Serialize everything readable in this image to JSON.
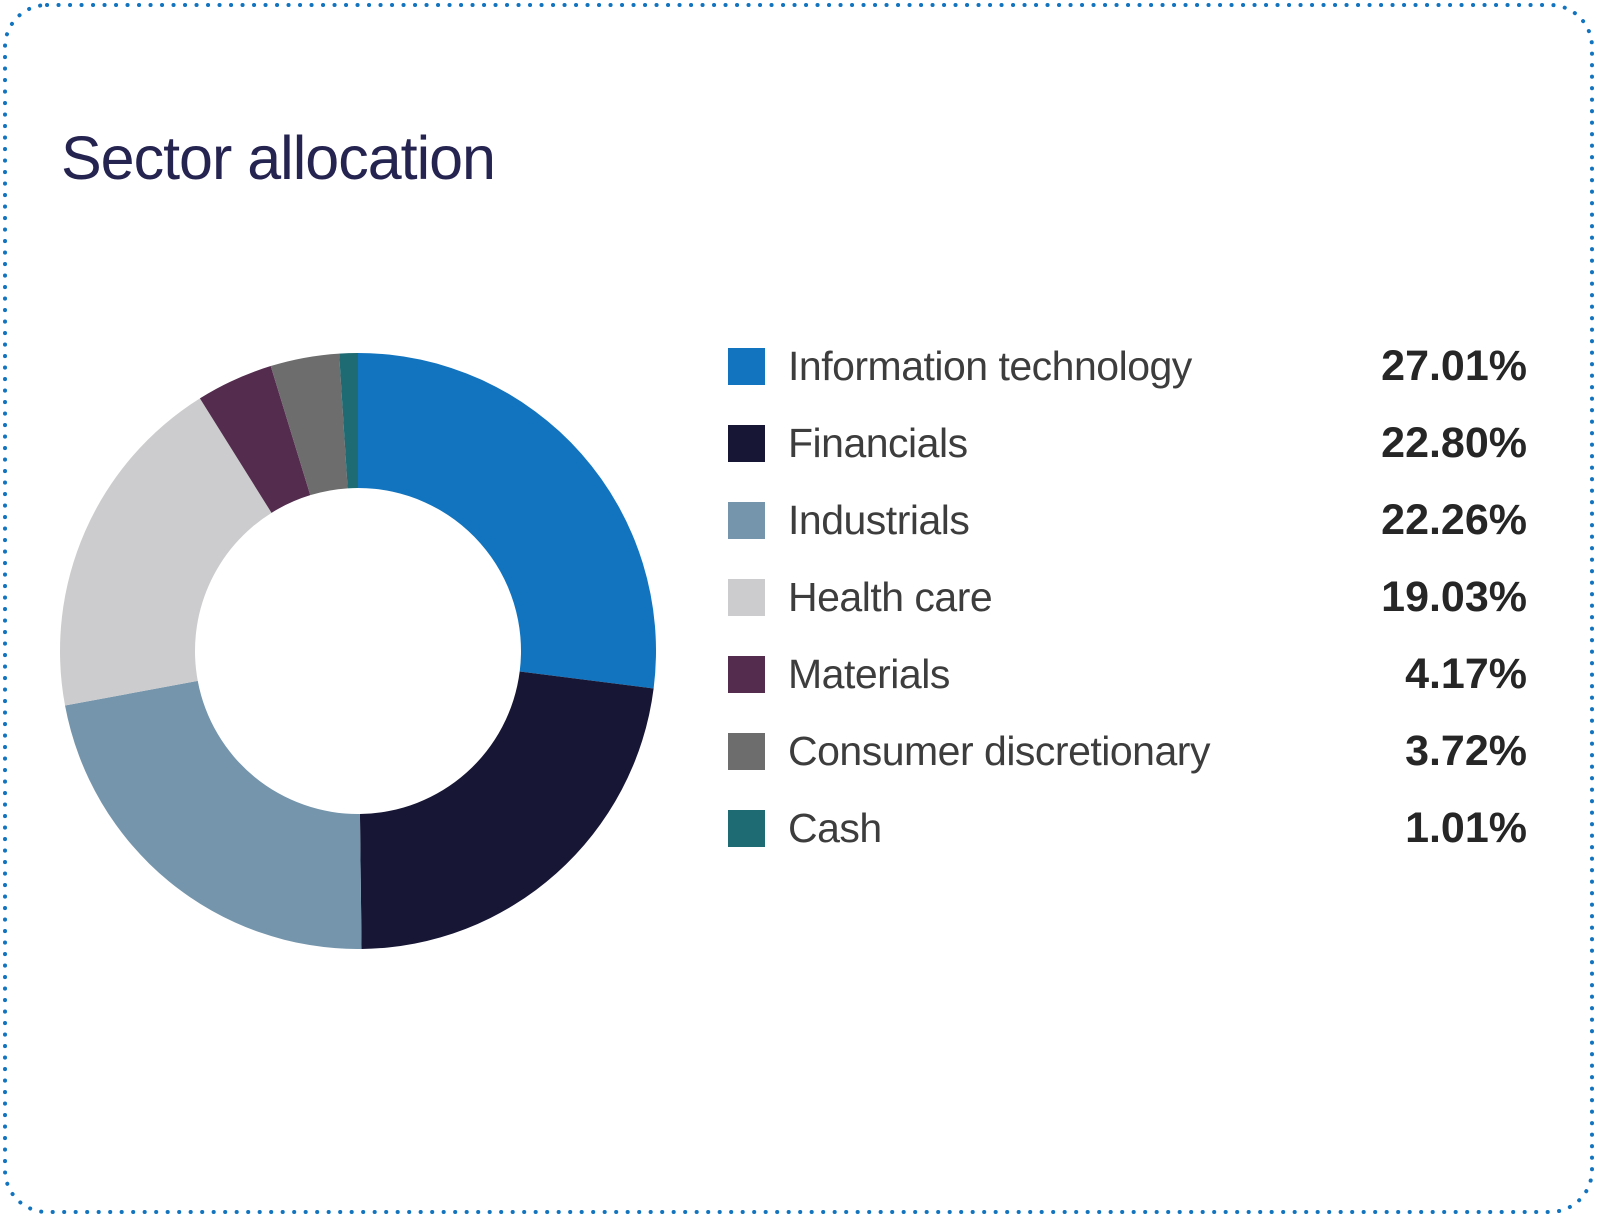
{
  "header": {
    "title": "Sector allocation"
  },
  "style": {
    "border_color": "#1274BE",
    "title_color": "#252350",
    "label_color": "#3d3d3d",
    "value_color": "#262626",
    "background": "#ffffff"
  },
  "chart_data": {
    "type": "pie",
    "subtype": "donut",
    "title": "Sector allocation",
    "direction": "clockwise",
    "start_angle_deg": 0,
    "inner_radius_ratio": 0.547,
    "legend_position": "right",
    "segments": [
      {
        "label": "Information technology",
        "value": 27.01,
        "display": "27.01%",
        "color": "#1274BE"
      },
      {
        "label": "Financials",
        "value": 22.8,
        "display": "22.80%",
        "color": "#171635"
      },
      {
        "label": "Industrials",
        "value": 22.26,
        "display": "22.26%",
        "color": "#7495AC"
      },
      {
        "label": "Health care",
        "value": 19.03,
        "display": "19.03%",
        "color": "#CCCCCE"
      },
      {
        "label": "Materials",
        "value": 4.17,
        "display": "4.17%",
        "color": "#532C4E"
      },
      {
        "label": "Consumer discretionary",
        "value": 3.72,
        "display": "3.72%",
        "color": "#6D6D6D"
      },
      {
        "label": "Cash",
        "value": 1.01,
        "display": "1.01%",
        "color": "#1E6B73"
      }
    ]
  }
}
